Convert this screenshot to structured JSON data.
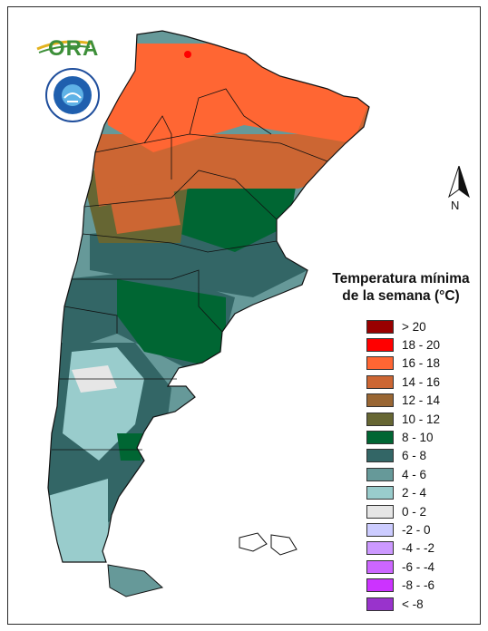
{
  "logos": {
    "ora_text": "ORA",
    "smn_name": "smn-logo"
  },
  "north_arrow": {
    "letter": "N"
  },
  "legend": {
    "title_line1": "Temperatura mínima",
    "title_line2": "de la semana (°C)",
    "items": [
      {
        "label": "> 20",
        "color": "#990000"
      },
      {
        "label": "18 - 20",
        "color": "#ff0000"
      },
      {
        "label": "16 - 18",
        "color": "#ff6633"
      },
      {
        "label": "14 - 16",
        "color": "#cc6633"
      },
      {
        "label": "12 - 14",
        "color": "#996633"
      },
      {
        "label": "10 - 12",
        "color": "#666633"
      },
      {
        "label": "8 - 10",
        "color": "#006633"
      },
      {
        "label": "6 - 8",
        "color": "#336666"
      },
      {
        "label": "4 - 6",
        "color": "#669999"
      },
      {
        "label": "2 - 4",
        "color": "#99cccc"
      },
      {
        "label": "0 - 2",
        "color": "#e6e6e6"
      },
      {
        "label": "-2 - 0",
        "color": "#ccccff"
      },
      {
        "label": "-4 - -2",
        "color": "#cc99ff"
      },
      {
        "label": "-6 - -4",
        "color": "#cc66ff"
      },
      {
        "label": "-8 - -6",
        "color": "#cc33ff"
      },
      {
        "label": "< -8",
        "color": "#9933cc"
      }
    ]
  }
}
